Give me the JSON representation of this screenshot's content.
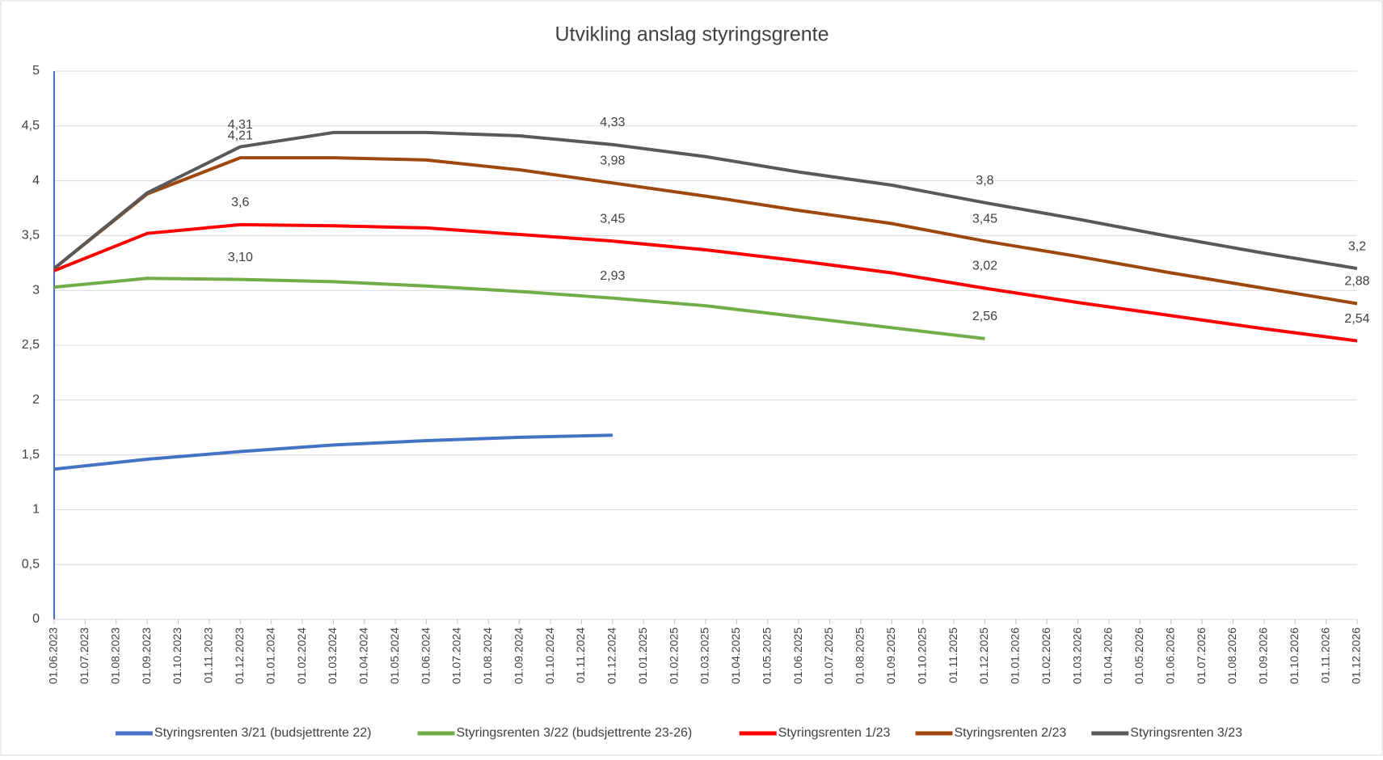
{
  "chart_data": {
    "type": "line",
    "title": "Utvikling anslag styringsgrente",
    "categories": [
      "01.06.2023",
      "01.07.2023",
      "01.08.2023",
      "01.09.2023",
      "01.10.2023",
      "01.11.2023",
      "01.12.2023",
      "01.01.2024",
      "01.02.2024",
      "01.03.2024",
      "01.04.2024",
      "01.05.2024",
      "01.06.2024",
      "01.07.2024",
      "01.08.2024",
      "01.09.2024",
      "01.10.2024",
      "01.11.2024",
      "01.12.2024",
      "01.01.2025",
      "01.02.2025",
      "01.03.2025",
      "01.04.2025",
      "01.05.2025",
      "01.06.2025",
      "01.07.2025",
      "01.08.2025",
      "01.09.2025",
      "01.10.2025",
      "01.11.2025",
      "01.12.2025",
      "01.01.2026",
      "01.02.2026",
      "01.03.2026",
      "01.04.2026",
      "01.05.2026",
      "01.06.2026",
      "01.07.2026",
      "01.08.2026",
      "01.09.2026",
      "01.10.2026",
      "01.11.2026",
      "01.12.2026"
    ],
    "series": [
      {
        "name": "Styringsrenten 3/21 (budsjettrente 22)",
        "color": "#4472c4",
        "x": [
          "01.06.2023",
          "01.09.2023",
          "01.12.2023",
          "01.03.2024",
          "01.06.2024",
          "01.09.2024",
          "01.12.2024"
        ],
        "values": [
          1.37,
          1.46,
          1.53,
          1.59,
          1.63,
          1.66,
          1.68
        ]
      },
      {
        "name": "Styringsrenten 3/22 (budsjettrente 23-26)",
        "color": "#70ad47",
        "x": [
          "01.06.2023",
          "01.09.2023",
          "01.12.2023",
          "01.03.2024",
          "01.06.2024",
          "01.09.2024",
          "01.12.2024",
          "01.03.2025",
          "01.06.2025",
          "01.09.2025",
          "01.12.2025"
        ],
        "values": [
          3.03,
          3.11,
          3.1,
          3.08,
          3.04,
          2.99,
          2.93,
          2.86,
          2.76,
          2.66,
          2.56
        ],
        "value_labels": [
          null,
          null,
          "3,10",
          null,
          null,
          null,
          "2,93",
          null,
          null,
          null,
          "2,56"
        ]
      },
      {
        "name": "Styringsrenten 1/23",
        "color": "#ff0000",
        "x": [
          "01.06.2023",
          "01.09.2023",
          "01.12.2023",
          "01.03.2024",
          "01.06.2024",
          "01.09.2024",
          "01.12.2024",
          "01.03.2025",
          "01.06.2025",
          "01.09.2025",
          "01.12.2025",
          "01.03.2026",
          "01.06.2026",
          "01.09.2026",
          "01.12.2026"
        ],
        "values": [
          3.18,
          3.52,
          3.6,
          3.59,
          3.57,
          3.51,
          3.45,
          3.37,
          3.27,
          3.16,
          3.02,
          2.89,
          2.77,
          2.65,
          2.54
        ],
        "value_labels": [
          null,
          null,
          "3,6",
          null,
          null,
          null,
          "3,45",
          null,
          null,
          null,
          "3,02",
          null,
          null,
          null,
          "2,54"
        ]
      },
      {
        "name": "Styringsrenten 2/23",
        "color": "#9e480e",
        "x": [
          "01.06.2023",
          "01.09.2023",
          "01.12.2023",
          "01.03.2024",
          "01.06.2024",
          "01.09.2024",
          "01.12.2024",
          "01.03.2025",
          "01.06.2025",
          "01.09.2025",
          "01.12.2025",
          "01.03.2026",
          "01.06.2026",
          "01.09.2026",
          "01.12.2026"
        ],
        "values": [
          3.2,
          3.88,
          4.21,
          4.21,
          4.19,
          4.1,
          3.98,
          3.86,
          3.73,
          3.61,
          3.45,
          3.31,
          3.16,
          3.02,
          2.88
        ],
        "value_labels": [
          null,
          null,
          "4,21",
          null,
          null,
          null,
          "3,98",
          null,
          null,
          null,
          "3,45",
          null,
          null,
          null,
          "2,88"
        ]
      },
      {
        "name": "Styringsrenten 3/23",
        "color": "#595959",
        "x": [
          "01.06.2023",
          "01.09.2023",
          "01.12.2023",
          "01.03.2024",
          "01.06.2024",
          "01.09.2024",
          "01.12.2024",
          "01.03.2025",
          "01.06.2025",
          "01.09.2025",
          "01.12.2025",
          "01.03.2026",
          "01.06.2026",
          "01.09.2026",
          "01.12.2026"
        ],
        "values": [
          3.2,
          3.89,
          4.31,
          4.44,
          4.44,
          4.41,
          4.33,
          4.22,
          4.08,
          3.96,
          3.8,
          3.65,
          3.49,
          3.34,
          3.2
        ],
        "value_labels": [
          null,
          null,
          "4,31",
          null,
          null,
          null,
          "4,33",
          null,
          null,
          null,
          "3,8",
          null,
          null,
          null,
          "3,2"
        ]
      }
    ],
    "ylim": [
      0,
      5
    ],
    "yticks": [
      0,
      {
        "value": 0.5,
        "label": "0,5"
      },
      1,
      {
        "value": 1.5,
        "label": "1,5"
      },
      2,
      {
        "value": 2.5,
        "label": "2,5"
      },
      3,
      {
        "value": 3.5,
        "label": "3,5"
      },
      4,
      {
        "value": 4.5,
        "label": "4,5"
      },
      5
    ],
    "grid": true,
    "legend": "bottom"
  }
}
